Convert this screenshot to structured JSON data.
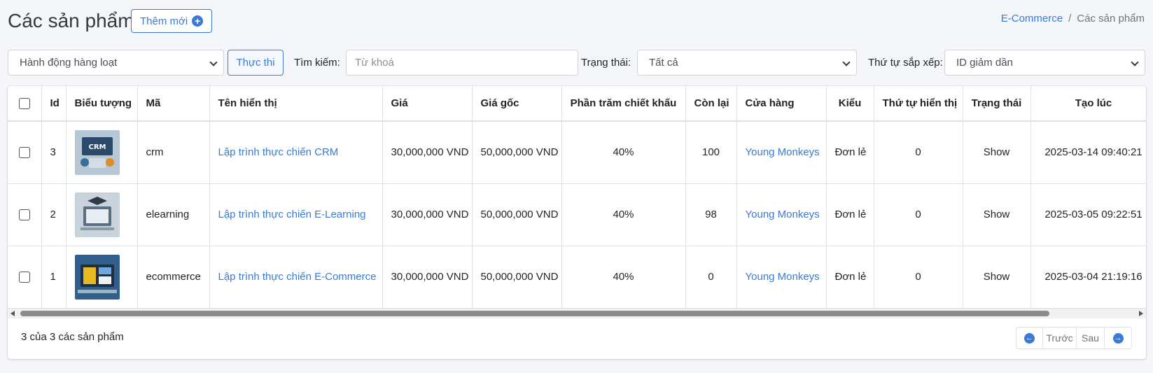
{
  "page": {
    "title": "Các sản phẩm",
    "add_label": "Thêm mới"
  },
  "breadcrumb": {
    "root": "E-Commerce",
    "separator": "/",
    "current": "Các sản phẩm"
  },
  "filters": {
    "bulk_action": "Hành động hàng loạt",
    "execute_label": "Thực thi",
    "search_label": "Tìm kiếm:",
    "search_placeholder": "Từ khoá",
    "status_label": "Trạng thái:",
    "status_value": "Tất cả",
    "sort_label": "Thứ tự sắp xếp:",
    "sort_value": "ID giảm dần"
  },
  "table": {
    "headers": {
      "id": "Id",
      "icon": "Biểu tượng",
      "code": "Mã",
      "name": "Tên hiển thị",
      "price": "Giá",
      "original_price": "Giá gốc",
      "discount": "Phần trăm chiết khấu",
      "remaining": "Còn lại",
      "store": "Cửa hàng",
      "type": "Kiểu",
      "order": "Thứ tự hiển thị",
      "status": "Trạng thái",
      "created": "Tạo lúc"
    },
    "rows": [
      {
        "id": "3",
        "thumb": "crm-thumbnail",
        "code": "crm",
        "name": "Lập trình thực chiến CRM",
        "price": "30,000,000 VND",
        "original_price": "50,000,000 VND",
        "discount": "40%",
        "remaining": "100",
        "store": "Young Monkeys",
        "type": "Đơn lẻ",
        "order": "0",
        "status": "Show",
        "created": "2025-03-14 09:40:21"
      },
      {
        "id": "2",
        "thumb": "elearning-thumbnail",
        "code": "elearning",
        "name": "Lập trình thực chiến E-Learning",
        "price": "30,000,000 VND",
        "original_price": "50,000,000 VND",
        "discount": "40%",
        "remaining": "98",
        "store": "Young Monkeys",
        "type": "Đơn lẻ",
        "order": "0",
        "status": "Show",
        "created": "2025-03-05 09:22:51"
      },
      {
        "id": "1",
        "thumb": "ecommerce-thumbnail",
        "code": "ecommerce",
        "name": "Lập trình thực chiến E-Commerce",
        "price": "30,000,000 VND",
        "original_price": "50,000,000 VND",
        "discount": "40%",
        "remaining": "0",
        "store": "Young Monkeys",
        "type": "Đơn lẻ",
        "order": "0",
        "status": "Show",
        "created": "2025-03-04 21:19:16"
      }
    ]
  },
  "footer": {
    "count_text": "3 của 3 các sản phẩm",
    "prev_label": "Trước",
    "next_label": "Sau"
  },
  "colors": {
    "accent": "#3a7bd5",
    "background": "#f4f6f9"
  }
}
